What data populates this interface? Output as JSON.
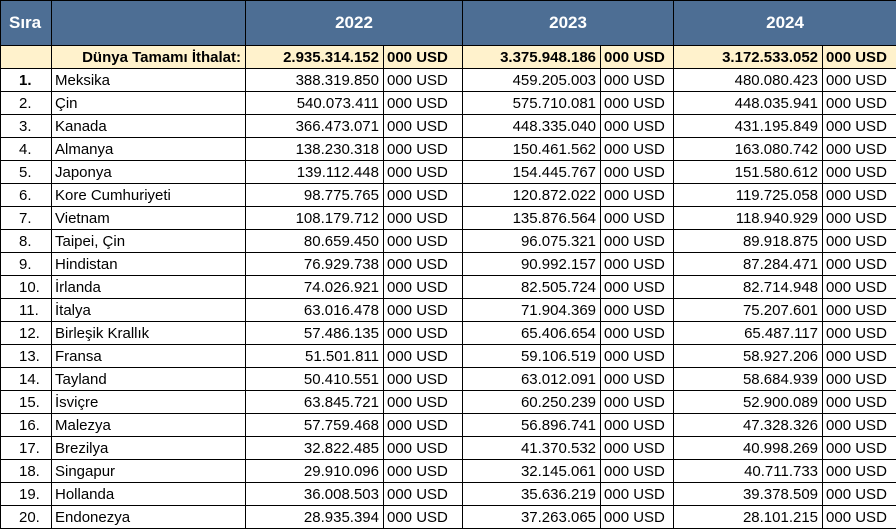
{
  "header": {
    "rank_label": "Sıra",
    "years": [
      "2022",
      "2023",
      "2024"
    ]
  },
  "total": {
    "label": "Dünya Tamamı İthalat:",
    "values": [
      "2.935.314.152",
      "3.375.948.186",
      "3.172.533.052"
    ],
    "unit": "000 USD"
  },
  "unit": "000 USD",
  "rows": [
    {
      "rank": "1.",
      "country": "Meksika",
      "v2022": "388.319.850",
      "v2023": "459.205.003",
      "v2024": "480.080.423"
    },
    {
      "rank": "2.",
      "country": "Çin",
      "v2022": "540.073.411",
      "v2023": "575.710.081",
      "v2024": "448.035.941"
    },
    {
      "rank": "3.",
      "country": "Kanada",
      "v2022": "366.473.071",
      "v2023": "448.335.040",
      "v2024": "431.195.849"
    },
    {
      "rank": "4.",
      "country": "Almanya",
      "v2022": "138.230.318",
      "v2023": "150.461.562",
      "v2024": "163.080.742"
    },
    {
      "rank": "5.",
      "country": "Japonya",
      "v2022": "139.112.448",
      "v2023": "154.445.767",
      "v2024": "151.580.612"
    },
    {
      "rank": "6.",
      "country": "Kore Cumhuriyeti",
      "v2022": "98.775.765",
      "v2023": "120.872.022",
      "v2024": "119.725.058"
    },
    {
      "rank": "7.",
      "country": "Vietnam",
      "v2022": "108.179.712",
      "v2023": "135.876.564",
      "v2024": "118.940.929"
    },
    {
      "rank": "8.",
      "country": "Taipei, Çin",
      "v2022": "80.659.450",
      "v2023": "96.075.321",
      "v2024": "89.918.875"
    },
    {
      "rank": "9.",
      "country": "Hindistan",
      "v2022": "76.929.738",
      "v2023": "90.992.157",
      "v2024": "87.284.471"
    },
    {
      "rank": "10.",
      "country": "İrlanda",
      "v2022": "74.026.921",
      "v2023": "82.505.724",
      "v2024": "82.714.948"
    },
    {
      "rank": "11.",
      "country": "İtalya",
      "v2022": "63.016.478",
      "v2023": "71.904.369",
      "v2024": "75.207.601"
    },
    {
      "rank": "12.",
      "country": "Birleşik Krallık",
      "v2022": "57.486.135",
      "v2023": "65.406.654",
      "v2024": "65.487.117"
    },
    {
      "rank": "13.",
      "country": "Fransa",
      "v2022": "51.501.811",
      "v2023": "59.106.519",
      "v2024": "58.927.206"
    },
    {
      "rank": "14.",
      "country": "Tayland",
      "v2022": "50.410.551",
      "v2023": "63.012.091",
      "v2024": "58.684.939"
    },
    {
      "rank": "15.",
      "country": "İsviçre",
      "v2022": "63.845.721",
      "v2023": "60.250.239",
      "v2024": "52.900.089"
    },
    {
      "rank": "16.",
      "country": "Malezya",
      "v2022": "57.759.468",
      "v2023": "56.896.741",
      "v2024": "47.328.326"
    },
    {
      "rank": "17.",
      "country": "Brezilya",
      "v2022": "32.822.485",
      "v2023": "41.370.532",
      "v2024": "40.998.269"
    },
    {
      "rank": "18.",
      "country": "Singapur",
      "v2022": "29.910.096",
      "v2023": "32.145.061",
      "v2024": "40.711.733"
    },
    {
      "rank": "19.",
      "country": "Hollanda",
      "v2022": "36.008.503",
      "v2023": "35.636.219",
      "v2024": "39.378.509"
    },
    {
      "rank": "20.",
      "country": "Endonezya",
      "v2022": "28.935.394",
      "v2023": "37.263.065",
      "v2024": "28.101.215"
    }
  ]
}
